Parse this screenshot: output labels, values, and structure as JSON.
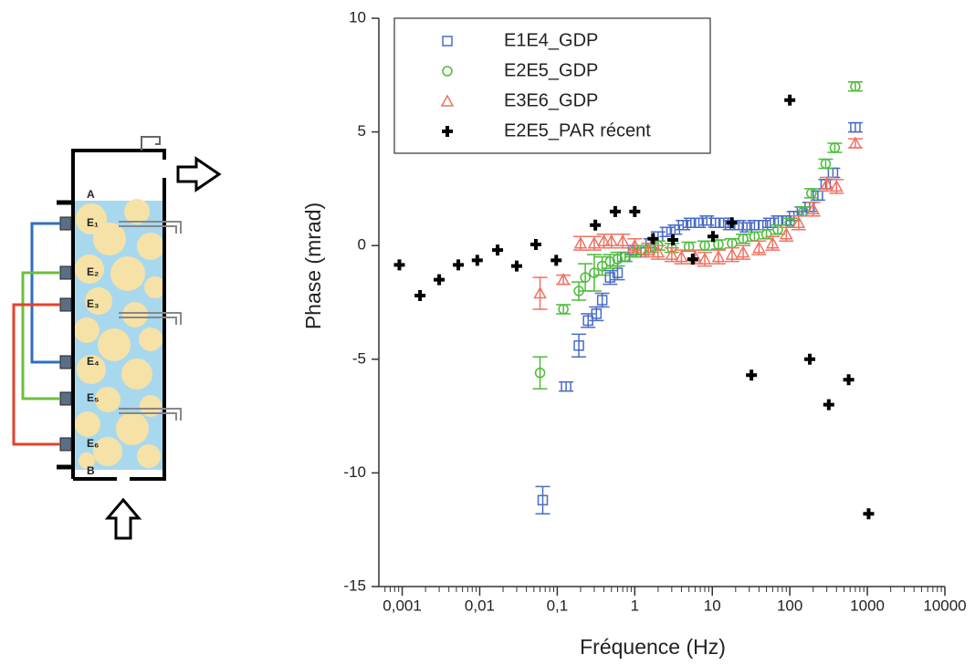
{
  "diagram": {
    "labels": [
      "A",
      "E₁",
      "E₂",
      "E₃",
      "E₄",
      "E₅",
      "E₆",
      "B"
    ]
  },
  "chart_data": {
    "type": "scatter",
    "xlabel": "Fréquence (Hz)",
    "ylabel": "Phase (mrad)",
    "xscale": "log",
    "xlim": [
      0.0005,
      10000
    ],
    "xticks": [
      {
        "value": 0.001,
        "label": "0,001"
      },
      {
        "value": 0.01,
        "label": "0,01"
      },
      {
        "value": 0.1,
        "label": "0,1"
      },
      1,
      10,
      100,
      1000,
      10000
    ],
    "ylim": [
      -15,
      10
    ],
    "yticks": [
      -15,
      -10,
      -5,
      0,
      5,
      10
    ],
    "legend": "top-left",
    "series": [
      {
        "name": "E1E4_GDP",
        "color": "#4a6cc4",
        "marker": "square",
        "x": [
          0.065,
          0.13,
          0.19,
          0.25,
          0.32,
          0.38,
          0.48,
          0.6,
          0.75,
          0.95,
          1.2,
          1.6,
          2.0,
          2.6,
          3.3,
          4.2,
          5.3,
          6.7,
          8.5,
          11,
          14,
          17,
          22,
          28,
          35,
          45,
          56,
          71,
          90,
          113,
          143,
          180,
          230,
          290,
          360,
          700
        ],
        "values": [
          -11.2,
          -6.2,
          -4.4,
          -3.3,
          -3.0,
          -2.4,
          -1.4,
          -1.2,
          -0.5,
          -0.2,
          -0.3,
          0.1,
          0.4,
          0.6,
          0.7,
          0.9,
          1.0,
          1.0,
          1.1,
          1.0,
          1.0,
          0.9,
          0.9,
          0.8,
          0.9,
          0.9,
          1.0,
          1.1,
          1.1,
          1.3,
          1.5,
          1.7,
          2.2,
          2.7,
          3.2,
          5.2
        ],
        "errors": [
          0.6,
          0.2,
          0.5,
          0.3,
          0.3,
          0.3,
          0.3,
          0.3,
          0.2,
          0.2,
          0.2,
          0.2,
          0.2,
          0.2,
          0.2,
          0.2,
          0.2,
          0.2,
          0.2,
          0.2,
          0.2,
          0.2,
          0.2,
          0.2,
          0.2,
          0.2,
          0.2,
          0.2,
          0.2,
          0.2,
          0.2,
          0.2,
          0.2,
          0.2,
          0.2,
          0.2
        ]
      },
      {
        "name": "E2E5_GDP",
        "color": "#4cbb3a",
        "marker": "circle",
        "x": [
          0.06,
          0.12,
          0.19,
          0.23,
          0.3,
          0.38,
          0.48,
          0.6,
          0.75,
          0.95,
          1.2,
          1.6,
          2.0,
          3,
          5,
          8,
          12,
          18,
          25,
          35,
          50,
          70,
          100,
          150,
          190,
          290,
          380,
          700
        ],
        "values": [
          -5.6,
          -2.8,
          -2.0,
          -1.4,
          -1.2,
          -0.9,
          -0.7,
          -0.6,
          -0.5,
          -0.3,
          -0.2,
          -0.1,
          0.0,
          -0.1,
          -0.05,
          0.0,
          0.05,
          0.1,
          0.3,
          0.4,
          0.5,
          0.7,
          1.0,
          1.5,
          2.3,
          3.6,
          4.3,
          7.0
        ],
        "errors": [
          0.7,
          0.2,
          0.4,
          0.6,
          0.8,
          0.4,
          0.3,
          0.3,
          0.2,
          0.2,
          0.2,
          0.2,
          0.2,
          0.2,
          0.2,
          0.2,
          0.2,
          0.2,
          0.2,
          0.2,
          0.2,
          0.2,
          0.2,
          0.2,
          0.2,
          0.2,
          0.2,
          0.2
        ]
      },
      {
        "name": "E3E6_GDP",
        "color": "#f07262",
        "marker": "triangle",
        "x": [
          0.06,
          0.12,
          0.2,
          0.3,
          0.4,
          0.5,
          0.7,
          1,
          1.5,
          2,
          3,
          4,
          6,
          8,
          12,
          18,
          25,
          40,
          60,
          90,
          130,
          200,
          300,
          400,
          700
        ],
        "values": [
          -2.1,
          -1.5,
          0.1,
          0.1,
          0.2,
          0.2,
          0.2,
          0.0,
          -0.2,
          -0.3,
          -0.4,
          -0.5,
          -0.5,
          -0.6,
          -0.5,
          -0.4,
          -0.3,
          -0.1,
          0.1,
          0.5,
          1.0,
          1.6,
          2.7,
          2.6,
          4.5
        ],
        "errors": [
          0.7,
          0.2,
          0.3,
          0.3,
          0.3,
          0.3,
          0.3,
          0.3,
          0.3,
          0.3,
          0.3,
          0.3,
          0.3,
          0.3,
          0.3,
          0.3,
          0.3,
          0.3,
          0.3,
          0.3,
          0.3,
          0.3,
          0.3,
          0.3,
          0.2
        ]
      },
      {
        "name": "E2E5_PAR récent",
        "color": "#000000",
        "marker": "plus",
        "x": [
          0.00092,
          0.0017,
          0.003,
          0.0053,
          0.0093,
          0.017,
          0.03,
          0.053,
          0.097,
          0.31,
          0.56,
          1.0,
          1.72,
          3.1,
          5.6,
          10.2,
          17.9,
          32,
          100,
          181,
          318,
          574,
          1038
        ],
        "values": [
          -0.85,
          -2.2,
          -1.5,
          -0.85,
          -0.65,
          -0.2,
          -0.9,
          0.05,
          -0.65,
          0.9,
          1.5,
          1.5,
          0.3,
          0.25,
          -0.6,
          0.4,
          1.0,
          -5.7,
          6.4,
          -5.0,
          -7.0,
          -5.9,
          -11.8
        ]
      }
    ]
  }
}
